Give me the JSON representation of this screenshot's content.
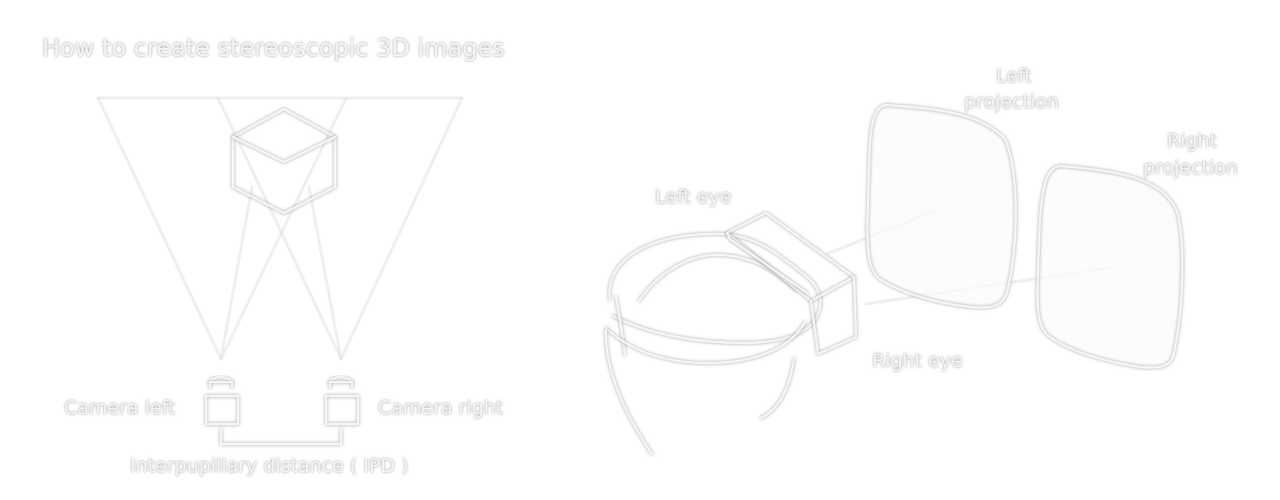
{
  "diagram": {
    "title": "How to create stereoscopic 3D images",
    "labels": {
      "camera_left": "Camera left",
      "camera_right": "Camera right",
      "ipd": "Interpupillary distance ( IPD )",
      "left_eye": "Left eye",
      "right_eye": "Right eye",
      "left_projection_line1": "Left",
      "left_projection_line2": "projection",
      "right_projection_line1": "Right",
      "right_projection_line2": "projection"
    },
    "colors": {
      "background": "#ffffff",
      "line": "#f6f6f6",
      "shadow": "#8b8b8b"
    }
  }
}
